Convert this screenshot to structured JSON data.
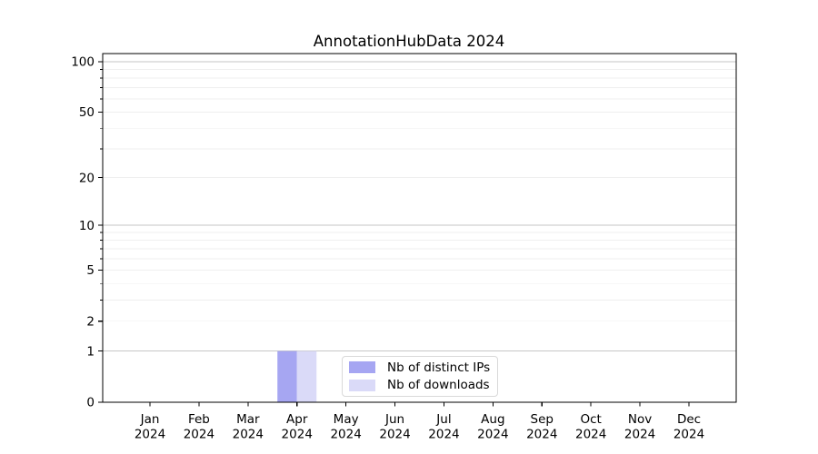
{
  "chart_data": {
    "type": "bar",
    "title": "AnnotationHubData 2024",
    "x_categories": [
      "Jan",
      "Feb",
      "Mar",
      "Apr",
      "May",
      "Jun",
      "Jul",
      "Aug",
      "Sep",
      "Oct",
      "Nov",
      "Dec"
    ],
    "x_year_label": "2024",
    "series": [
      {
        "name": "Nb of distinct IPs",
        "color": "#a6a6f2",
        "values": [
          0,
          0,
          0,
          1,
          0,
          0,
          0,
          0,
          0,
          0,
          0,
          0
        ]
      },
      {
        "name": "Nb of downloads",
        "color": "#dadaf8",
        "values": [
          0,
          0,
          0,
          1,
          0,
          0,
          0,
          0,
          0,
          0,
          0,
          0
        ]
      }
    ],
    "y_axis": {
      "scale": "log1p",
      "tick_values": [
        0,
        1,
        2,
        5,
        10,
        20,
        50,
        100
      ],
      "major_grid_values": [
        1,
        10,
        100
      ],
      "minor_grid_values": [
        2,
        3,
        4,
        5,
        6,
        7,
        8,
        9,
        20,
        30,
        40,
        50,
        60,
        70,
        80,
        90
      ],
      "range": [
        0,
        110
      ]
    },
    "grid": true,
    "legend": {
      "position": "bottom-center"
    },
    "colors": {
      "axis": "#000000",
      "text": "#000000",
      "major_grid": "#c6c6c6",
      "minor_grid": "#efefef",
      "legend_border": "#d9d9d9",
      "background": "#ffffff"
    }
  }
}
